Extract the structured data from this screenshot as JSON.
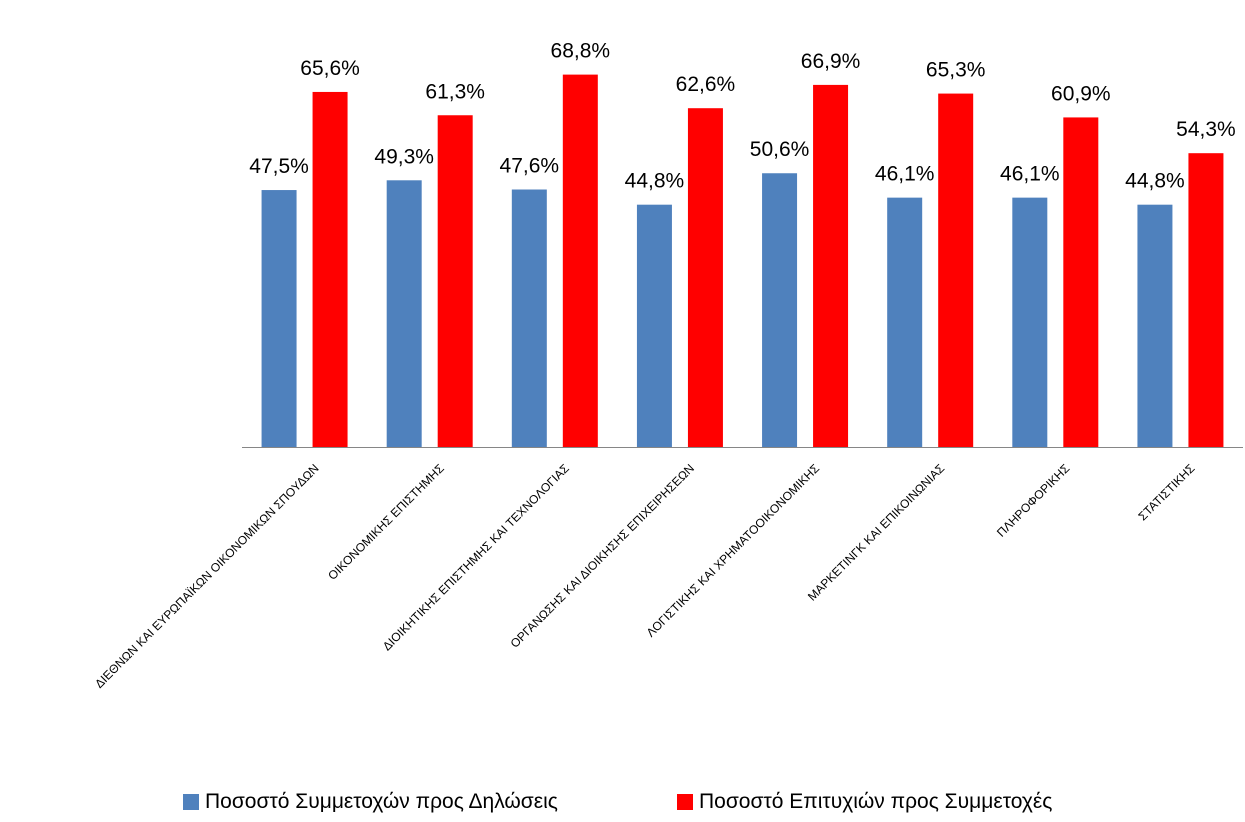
{
  "chart_data": {
    "type": "bar",
    "categories": [
      "ΔΙΕΘΝΩΝ ΚΑΙ ΕΥΡΩΠΑΪΚΩΝ ΟΙΚΟΝΟΜΙΚΩΝ ΣΠΟΥΔΩΝ",
      "ΟΙΚΟΝΟΜΙΚΗΣ ΕΠΙΣΤΗΜΗΣ",
      "ΔΙΟΙΚΗΤΙΚΗΣ ΕΠΙΣΤΗΜΗΣ ΚΑΙ ΤΕΧΝΟΛΟΓΙΑΣ",
      "ΟΡΓΑΝΩΣΗΣ ΚΑΙ ΔΙΟΙΚΗΣΗΣ ΕΠΙΧΕΙΡΗΣΕΩΝ",
      "ΛΟΓΙΣΤΙΚΗΣ ΚΑΙ ΧΡΗΜΑΤΟΟΙΚΟΝΟΜΙΚΗΣ",
      "ΜΑΡΚΕΤΙΝΓΚ ΚΑΙ ΕΠΙΚΟΙΝΩΝΙΑΣ",
      "ΠΛΗΡΟΦΟΡΙΚΗΣ",
      "ΣΤΑΤΙΣΤΙΚΗΣ"
    ],
    "series": [
      {
        "name": "Ποσοστό Συμμετοχών προς Δηλώσεις",
        "color": "#4F81BD",
        "values": [
          47.5,
          49.3,
          47.6,
          44.8,
          50.6,
          46.1,
          46.1,
          44.8
        ],
        "labels": [
          "47,5%",
          "49,3%",
          "47,6%",
          "44,8%",
          "50,6%",
          "46,1%",
          "46,1%",
          "44,8%"
        ]
      },
      {
        "name": "Ποσοστό Επιτυχιών προς Συμμετοχές",
        "color": "#FF0000",
        "values": [
          65.6,
          61.3,
          68.8,
          62.6,
          66.9,
          65.3,
          60.9,
          54.3
        ],
        "labels": [
          "65,6%",
          "61,3%",
          "68,8%",
          "62,6%",
          "66,9%",
          "65,3%",
          "60,9%",
          "54,3%"
        ]
      }
    ],
    "ylim": [
      0,
      72
    ],
    "title": "",
    "xlabel": "",
    "ylabel": "",
    "grid": false,
    "legend_position": "bottom"
  }
}
